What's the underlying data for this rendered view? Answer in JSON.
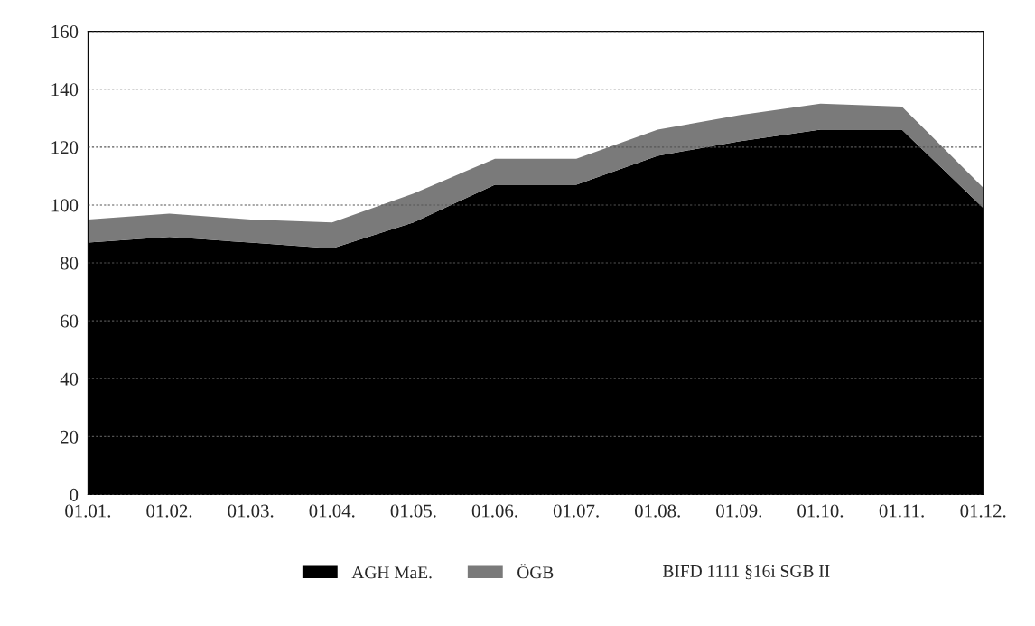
{
  "chart_data": {
    "type": "area",
    "stacked": true,
    "categories": [
      "01.01.",
      "01.02.",
      "01.03.",
      "01.04.",
      "01.05.",
      "01.06.",
      "01.07.",
      "01.08.",
      "01.09.",
      "01.10.",
      "01.11.",
      "01.12."
    ],
    "series": [
      {
        "name": "AGH MaE.",
        "color": "#000000",
        "values": [
          87,
          89,
          87,
          85,
          94,
          107,
          107,
          117,
          122,
          126,
          126,
          99
        ]
      },
      {
        "name": "ÖGB",
        "color": "#7a7a7a",
        "values": [
          8,
          8,
          8,
          9,
          10,
          9,
          9,
          9,
          9,
          9,
          8,
          7
        ]
      }
    ],
    "annotations": [
      "BIFD 1111 §16i SGB II"
    ],
    "ylim": [
      0,
      160
    ],
    "yticks": [
      0,
      20,
      40,
      60,
      80,
      100,
      120,
      140,
      160
    ],
    "grid": "y",
    "legend": "bottom"
  }
}
